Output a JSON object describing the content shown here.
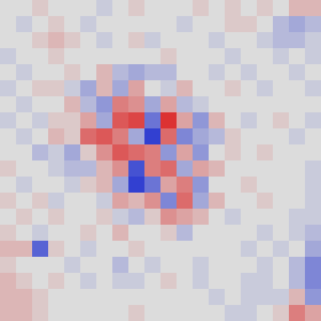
{
  "chart_data": {
    "type": "heatmap",
    "zlim": [
      -1,
      1
    ],
    "colors": [
      "#1f2fd0",
      "#dcdcdc",
      "#dc1f1f"
    ],
    "z": [
      [
        0,
        0,
        0.1,
        0,
        0,
        0,
        -0.1,
        0,
        0.1,
        0,
        0,
        0,
        0.1,
        0,
        0.1,
        0,
        0.1,
        0,
        0.2,
        0.2
      ],
      [
        0,
        -0.1,
        0,
        0.1,
        0,
        -0.1,
        0,
        0,
        0,
        0,
        0,
        -0.1,
        0,
        0,
        0.1,
        0.1,
        0,
        -0.2,
        -0.3,
        -0.2
      ],
      [
        0,
        0,
        0.1,
        0.2,
        0.1,
        0,
        -0.1,
        0,
        0.1,
        -0.1,
        0,
        0,
        0,
        -0.1,
        0,
        0,
        -0.1,
        -0.2,
        -0.2,
        -0.1
      ],
      [
        -0.1,
        0,
        0,
        0.1,
        0,
        0,
        0,
        0,
        0,
        0,
        0.1,
        0,
        0,
        0,
        -0.1,
        0,
        0,
        -0.1,
        0,
        -0.1
      ],
      [
        0,
        -0.1,
        0,
        0,
        0.1,
        0,
        0.2,
        -0.2,
        -0.3,
        -0.2,
        -0.2,
        0,
        0,
        -0.1,
        0,
        -0.1,
        0,
        0,
        -0.1,
        0
      ],
      [
        -0.1,
        0,
        0.1,
        0.1,
        -0.1,
        -0.3,
        0.2,
        -0.3,
        0.3,
        0,
        -0.1,
        0.2,
        0,
        0,
        0.1,
        0,
        -0.1,
        0,
        0,
        -0.1
      ],
      [
        0,
        -0.1,
        0,
        0,
        0.2,
        -0.2,
        -0.4,
        0.5,
        0.4,
        -0.3,
        0.3,
        -0.2,
        -0.1,
        0,
        0,
        0,
        0,
        0,
        0,
        0
      ],
      [
        -0.1,
        0,
        -0.1,
        0.1,
        0.1,
        0.3,
        -0.3,
        0.7,
        0.8,
        -0.6,
        0.9,
        0.3,
        -0.4,
        0.2,
        0,
        -0.1,
        0,
        0.1,
        0,
        -0.1
      ],
      [
        0,
        -0.1,
        0,
        0.2,
        0.1,
        0.6,
        0.7,
        0.5,
        -0.3,
        -0.9,
        0.6,
        -0.5,
        -0.3,
        -0.2,
        0.1,
        0,
        0,
        0,
        -0.1,
        0
      ],
      [
        0,
        0,
        -0.2,
        -0.1,
        -0.3,
        0.1,
        0.4,
        0.7,
        0.6,
        0.5,
        -0.4,
        0.3,
        -0.4,
        0,
        0.1,
        0,
        0.1,
        0,
        0,
        0
      ],
      [
        0.1,
        0,
        0,
        -0.1,
        -0.2,
        -0.2,
        0.2,
        0.4,
        -0.8,
        0.5,
        0.6,
        -0.3,
        0.3,
        0.2,
        0,
        0,
        0,
        0,
        0,
        -0.1
      ],
      [
        0,
        -0.1,
        0,
        0,
        -0.1,
        0.1,
        0.2,
        -0.3,
        -0.9,
        -0.6,
        0.3,
        0.5,
        -0.4,
        0,
        0,
        0.1,
        0,
        0,
        0,
        -0.1
      ],
      [
        0.1,
        0,
        0.1,
        -0.1,
        0,
        0,
        -0.1,
        0.3,
        0.2,
        0.4,
        -0.5,
        0.6,
        -0.3,
        0.2,
        0,
        0,
        0.1,
        0,
        0,
        -0.1
      ],
      [
        0,
        0.1,
        0,
        0.1,
        0,
        0,
        0.1,
        -0.1,
        -0.2,
        0.1,
        0.4,
        0.3,
        0.2,
        0,
        -0.1,
        0,
        0,
        0,
        -0.1,
        -0.1
      ],
      [
        0.1,
        0,
        -0.1,
        0,
        0,
        0.1,
        0,
        0.2,
        0,
        0,
        0.1,
        -0.2,
        0,
        0,
        0,
        0,
        -0.1,
        0,
        -0.1,
        -0.2
      ],
      [
        0.2,
        0.2,
        -0.7,
        0.1,
        0,
        -0.1,
        0,
        0,
        0.1,
        0,
        0,
        0,
        0,
        0,
        0,
        -0.1,
        0,
        -0.1,
        0,
        -0.3
      ],
      [
        0.1,
        0,
        0,
        0,
        -0.1,
        0,
        0,
        -0.2,
        0,
        -0.1,
        0,
        0,
        -0.1,
        0,
        0,
        0,
        -0.1,
        0,
        -0.2,
        -0.5
      ],
      [
        0.2,
        0.1,
        0,
        0.1,
        0,
        -0.1,
        0,
        -0.1,
        -0.1,
        0,
        0.1,
        0,
        -0.1,
        0,
        0,
        -0.1,
        -0.1,
        0,
        -0.2,
        -0.5
      ],
      [
        0.2,
        0.2,
        0.1,
        0,
        0,
        0,
        0,
        0,
        0,
        0,
        0,
        0,
        0,
        -0.1,
        0,
        -0.1,
        -0.1,
        -0.1,
        0.2,
        -0.4
      ],
      [
        0.2,
        0.2,
        0.1,
        0,
        0,
        0,
        0,
        0,
        0.1,
        0,
        0,
        0,
        0,
        0,
        -0.1,
        -0.1,
        0,
        0.1,
        0.5,
        0.3
      ]
    ]
  }
}
